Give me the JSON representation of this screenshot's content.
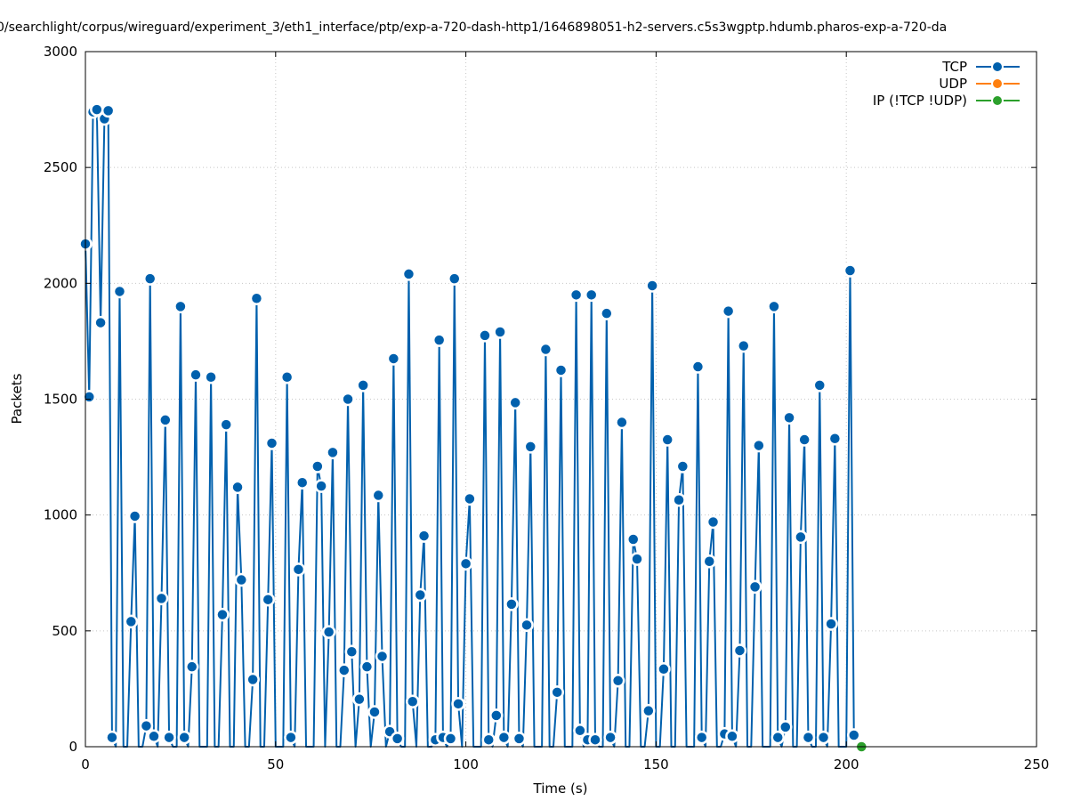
{
  "chart_data": {
    "type": "line",
    "title": "0/searchlight/corpus/wireguard/experiment_3/eth1_interface/ptp/exp-a-720-dash-http1/1646898051-h2-servers.c5s3wgptp.hdumb.pharos-exp-a-720-da",
    "xlabel": "Time (s)",
    "ylabel": "Packets",
    "xlim": [
      0,
      250
    ],
    "ylim": [
      0,
      3000
    ],
    "xticks": [
      0,
      50,
      100,
      150,
      200,
      250
    ],
    "yticks": [
      0,
      500,
      1000,
      1500,
      2000,
      2500,
      3000
    ],
    "grid": true,
    "legend_position": "top-right",
    "series": [
      {
        "name": "TCP",
        "color": "#0060ad",
        "points": [
          [
            0,
            2170
          ],
          [
            1,
            1510
          ],
          [
            2,
            2740
          ],
          [
            3,
            2750
          ],
          [
            4,
            1830
          ],
          [
            5,
            2710
          ],
          [
            6,
            2745
          ],
          [
            7,
            40
          ],
          [
            8,
            0
          ],
          [
            9,
            1965
          ],
          [
            10,
            0
          ],
          [
            11,
            0
          ],
          [
            12,
            540
          ],
          [
            13,
            995
          ],
          [
            14,
            0
          ],
          [
            15,
            0
          ],
          [
            16,
            90
          ],
          [
            17,
            2020
          ],
          [
            18,
            45
          ],
          [
            19,
            0
          ],
          [
            20,
            640
          ],
          [
            21,
            1410
          ],
          [
            22,
            40
          ],
          [
            23,
            0
          ],
          [
            24,
            0
          ],
          [
            25,
            1900
          ],
          [
            26,
            40
          ],
          [
            27,
            0
          ],
          [
            28,
            345
          ],
          [
            29,
            1605
          ],
          [
            30,
            0
          ],
          [
            31,
            0
          ],
          [
            32,
            0
          ],
          [
            33,
            1595
          ],
          [
            34,
            0
          ],
          [
            35,
            0
          ],
          [
            36,
            570
          ],
          [
            37,
            1390
          ],
          [
            38,
            0
          ],
          [
            39,
            0
          ],
          [
            40,
            1120
          ],
          [
            41,
            720
          ],
          [
            42,
            0
          ],
          [
            43,
            0
          ],
          [
            44,
            290
          ],
          [
            45,
            1935
          ],
          [
            46,
            0
          ],
          [
            47,
            0
          ],
          [
            48,
            635
          ],
          [
            49,
            1310
          ],
          [
            50,
            0
          ],
          [
            51,
            0
          ],
          [
            52,
            0
          ],
          [
            53,
            1595
          ],
          [
            54,
            40
          ],
          [
            55,
            0
          ],
          [
            56,
            765
          ],
          [
            57,
            1140
          ],
          [
            58,
            0
          ],
          [
            59,
            0
          ],
          [
            60,
            0
          ],
          [
            61,
            1210
          ],
          [
            62,
            1125
          ],
          [
            63,
            0
          ],
          [
            64,
            495
          ],
          [
            65,
            1270
          ],
          [
            66,
            0
          ],
          [
            67,
            0
          ],
          [
            68,
            330
          ],
          [
            69,
            1500
          ],
          [
            70,
            410
          ],
          [
            71,
            0
          ],
          [
            72,
            205
          ],
          [
            73,
            1560
          ],
          [
            74,
            345
          ],
          [
            75,
            0
          ],
          [
            76,
            150
          ],
          [
            77,
            1085
          ],
          [
            78,
            390
          ],
          [
            79,
            0
          ],
          [
            80,
            65
          ],
          [
            81,
            1675
          ],
          [
            82,
            35
          ],
          [
            83,
            0
          ],
          [
            84,
            0
          ],
          [
            85,
            2040
          ],
          [
            86,
            195
          ],
          [
            87,
            0
          ],
          [
            88,
            655
          ],
          [
            89,
            910
          ],
          [
            90,
            0
          ],
          [
            91,
            0
          ],
          [
            92,
            30
          ],
          [
            93,
            1755
          ],
          [
            94,
            40
          ],
          [
            95,
            0
          ],
          [
            96,
            35
          ],
          [
            97,
            2020
          ],
          [
            98,
            185
          ],
          [
            99,
            0
          ],
          [
            100,
            790
          ],
          [
            101,
            1070
          ],
          [
            102,
            0
          ],
          [
            103,
            0
          ],
          [
            104,
            0
          ],
          [
            105,
            1775
          ],
          [
            106,
            30
          ],
          [
            107,
            0
          ],
          [
            108,
            135
          ],
          [
            109,
            1790
          ],
          [
            110,
            40
          ],
          [
            111,
            0
          ],
          [
            112,
            615
          ],
          [
            113,
            1485
          ],
          [
            114,
            35
          ],
          [
            115,
            0
          ],
          [
            116,
            525
          ],
          [
            117,
            1295
          ],
          [
            118,
            0
          ],
          [
            119,
            0
          ],
          [
            120,
            0
          ],
          [
            121,
            1715
          ],
          [
            122,
            0
          ],
          [
            123,
            0
          ],
          [
            124,
            235
          ],
          [
            125,
            1625
          ],
          [
            126,
            0
          ],
          [
            127,
            0
          ],
          [
            128,
            0
          ],
          [
            129,
            1950
          ],
          [
            130,
            70
          ],
          [
            131,
            0
          ],
          [
            132,
            30
          ],
          [
            133,
            1950
          ],
          [
            134,
            30
          ],
          [
            135,
            0
          ],
          [
            136,
            0
          ],
          [
            137,
            1870
          ],
          [
            138,
            40
          ],
          [
            139,
            0
          ],
          [
            140,
            285
          ],
          [
            141,
            1400
          ],
          [
            142,
            0
          ],
          [
            143,
            0
          ],
          [
            144,
            895
          ],
          [
            145,
            810
          ],
          [
            146,
            0
          ],
          [
            147,
            0
          ],
          [
            148,
            155
          ],
          [
            149,
            1990
          ],
          [
            150,
            0
          ],
          [
            151,
            0
          ],
          [
            152,
            335
          ],
          [
            153,
            1325
          ],
          [
            154,
            0
          ],
          [
            155,
            0
          ],
          [
            156,
            1065
          ],
          [
            157,
            1210
          ],
          [
            158,
            0
          ],
          [
            159,
            0
          ],
          [
            160,
            0
          ],
          [
            161,
            1640
          ],
          [
            162,
            40
          ],
          [
            163,
            0
          ],
          [
            164,
            800
          ],
          [
            165,
            970
          ],
          [
            166,
            0
          ],
          [
            167,
            0
          ],
          [
            168,
            55
          ],
          [
            169,
            1880
          ],
          [
            170,
            45
          ],
          [
            171,
            0
          ],
          [
            172,
            415
          ],
          [
            173,
            1730
          ],
          [
            174,
            0
          ],
          [
            175,
            0
          ],
          [
            176,
            690
          ],
          [
            177,
            1300
          ],
          [
            178,
            0
          ],
          [
            179,
            0
          ],
          [
            180,
            0
          ],
          [
            181,
            1900
          ],
          [
            182,
            40
          ],
          [
            183,
            0
          ],
          [
            184,
            85
          ],
          [
            185,
            1420
          ],
          [
            186,
            0
          ],
          [
            187,
            0
          ],
          [
            188,
            905
          ],
          [
            189,
            1325
          ],
          [
            190,
            40
          ],
          [
            191,
            0
          ],
          [
            192,
            0
          ],
          [
            193,
            1560
          ],
          [
            194,
            40
          ],
          [
            195,
            0
          ],
          [
            196,
            530
          ],
          [
            197,
            1330
          ],
          [
            198,
            0
          ],
          [
            199,
            0
          ],
          [
            200,
            0
          ],
          [
            201,
            2055
          ],
          [
            202,
            50
          ]
        ],
        "marker_points": [
          [
            0,
            2170
          ],
          [
            1,
            1510
          ],
          [
            2,
            2740
          ],
          [
            3,
            2750
          ],
          [
            4,
            1830
          ],
          [
            5,
            2710
          ],
          [
            6,
            2745
          ],
          [
            7,
            40
          ],
          [
            9,
            1965
          ],
          [
            12,
            540
          ],
          [
            13,
            995
          ],
          [
            16,
            90
          ],
          [
            17,
            2020
          ],
          [
            18,
            45
          ],
          [
            20,
            640
          ],
          [
            21,
            1410
          ],
          [
            22,
            40
          ],
          [
            25,
            1900
          ],
          [
            26,
            40
          ],
          [
            28,
            345
          ],
          [
            29,
            1605
          ],
          [
            33,
            1595
          ],
          [
            36,
            570
          ],
          [
            37,
            1390
          ],
          [
            40,
            1120
          ],
          [
            41,
            720
          ],
          [
            44,
            290
          ],
          [
            45,
            1935
          ],
          [
            48,
            635
          ],
          [
            49,
            1310
          ],
          [
            53,
            1595
          ],
          [
            54,
            40
          ],
          [
            56,
            765
          ],
          [
            57,
            1140
          ],
          [
            61,
            1210
          ],
          [
            62,
            1125
          ],
          [
            64,
            495
          ],
          [
            65,
            1270
          ],
          [
            68,
            330
          ],
          [
            69,
            1500
          ],
          [
            70,
            410
          ],
          [
            72,
            205
          ],
          [
            73,
            1560
          ],
          [
            74,
            345
          ],
          [
            76,
            150
          ],
          [
            77,
            1085
          ],
          [
            78,
            390
          ],
          [
            80,
            65
          ],
          [
            81,
            1675
          ],
          [
            82,
            35
          ],
          [
            85,
            2040
          ],
          [
            86,
            195
          ],
          [
            88,
            655
          ],
          [
            89,
            910
          ],
          [
            92,
            30
          ],
          [
            93,
            1755
          ],
          [
            94,
            40
          ],
          [
            96,
            35
          ],
          [
            97,
            2020
          ],
          [
            98,
            185
          ],
          [
            100,
            790
          ],
          [
            101,
            1070
          ],
          [
            105,
            1775
          ],
          [
            106,
            30
          ],
          [
            108,
            135
          ],
          [
            109,
            1790
          ],
          [
            110,
            40
          ],
          [
            112,
            615
          ],
          [
            113,
            1485
          ],
          [
            114,
            35
          ],
          [
            116,
            525
          ],
          [
            117,
            1295
          ],
          [
            121,
            1715
          ],
          [
            124,
            235
          ],
          [
            125,
            1625
          ],
          [
            129,
            1950
          ],
          [
            130,
            70
          ],
          [
            132,
            30
          ],
          [
            133,
            1950
          ],
          [
            134,
            30
          ],
          [
            137,
            1870
          ],
          [
            138,
            40
          ],
          [
            140,
            285
          ],
          [
            141,
            1400
          ],
          [
            144,
            895
          ],
          [
            145,
            810
          ],
          [
            148,
            155
          ],
          [
            149,
            1990
          ],
          [
            152,
            335
          ],
          [
            153,
            1325
          ],
          [
            156,
            1065
          ],
          [
            157,
            1210
          ],
          [
            161,
            1640
          ],
          [
            162,
            40
          ],
          [
            164,
            800
          ],
          [
            165,
            970
          ],
          [
            168,
            55
          ],
          [
            169,
            1880
          ],
          [
            170,
            45
          ],
          [
            172,
            415
          ],
          [
            173,
            1730
          ],
          [
            176,
            690
          ],
          [
            177,
            1300
          ],
          [
            181,
            1900
          ],
          [
            182,
            40
          ],
          [
            184,
            85
          ],
          [
            185,
            1420
          ],
          [
            188,
            905
          ],
          [
            189,
            1325
          ],
          [
            190,
            40
          ],
          [
            193,
            1560
          ],
          [
            194,
            40
          ],
          [
            196,
            530
          ],
          [
            197,
            1330
          ],
          [
            201,
            2055
          ],
          [
            202,
            50
          ]
        ]
      },
      {
        "name": "UDP",
        "color": "#ff7f0e",
        "points": [],
        "marker_points": []
      },
      {
        "name": "IP (!TCP  !UDP)",
        "color": "#2ca02c",
        "points": [],
        "marker_points": [
          [
            204,
            0
          ]
        ]
      }
    ]
  }
}
